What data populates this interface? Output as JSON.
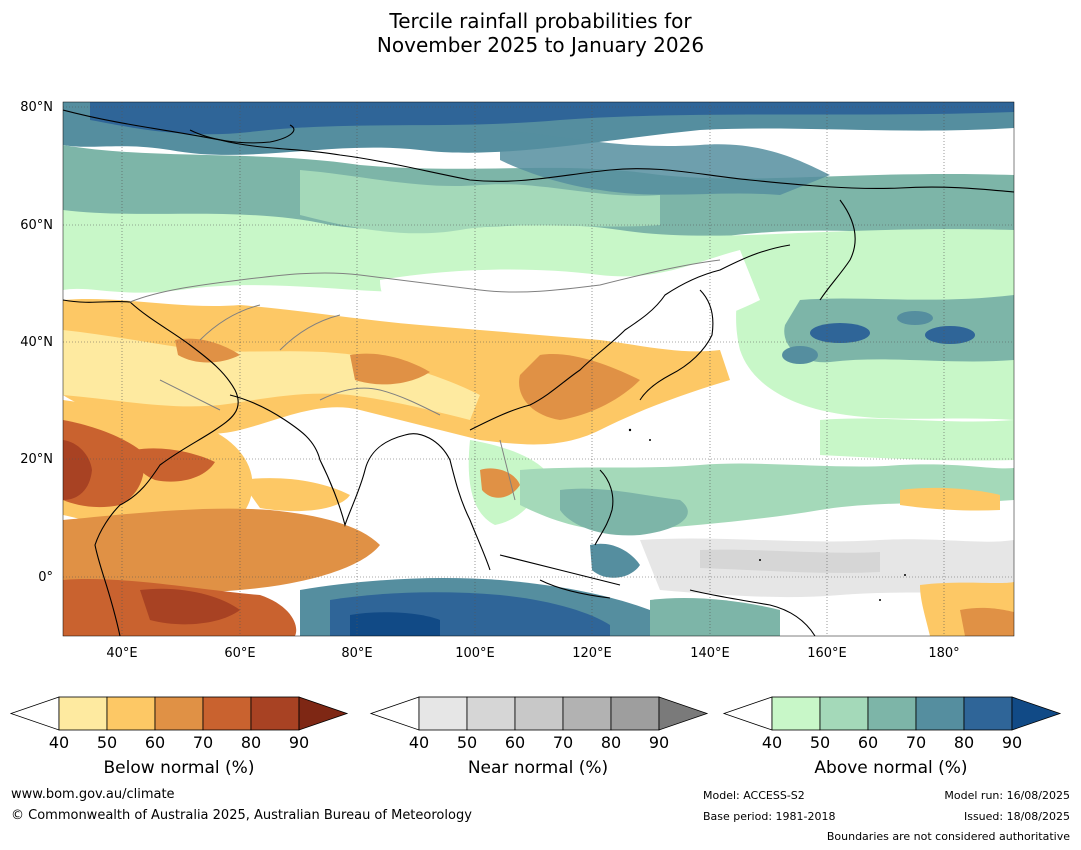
{
  "title": {
    "line1": "Tercile rainfall probabilities for",
    "line2": "November 2025 to January 2026"
  },
  "map": {
    "lat_labels": [
      "80°N",
      "60°N",
      "40°N",
      "20°N",
      "0°"
    ],
    "lon_labels": [
      "40°E",
      "60°E",
      "80°E",
      "100°E",
      "120°E",
      "140°E",
      "160°E",
      "180°"
    ]
  },
  "colorbars": [
    {
      "name": "below",
      "title": "Below normal (%)",
      "ticks": [
        "40",
        "50",
        "60",
        "70",
        "80",
        "90"
      ],
      "colors": [
        "#ffffff",
        "#feeaa0",
        "#fdc865",
        "#e09145",
        "#c9622f",
        "#a84223",
        "#7e2714"
      ]
    },
    {
      "name": "near",
      "title": "Near normal (%)",
      "ticks": [
        "40",
        "50",
        "60",
        "70",
        "80",
        "90"
      ],
      "colors": [
        "#ffffff",
        "#e6e6e6",
        "#d6d6d6",
        "#c8c8c8",
        "#b2b2b2",
        "#9e9e9e",
        "#7a7a7a"
      ]
    },
    {
      "name": "above",
      "title": "Above normal (%)",
      "ticks": [
        "40",
        "50",
        "60",
        "70",
        "80",
        "90"
      ],
      "colors": [
        "#ffffff",
        "#c8f7c8",
        "#a4d9b9",
        "#7db5a8",
        "#558e9f",
        "#2f6598",
        "#114a86"
      ]
    }
  ],
  "footer": {
    "url": "www.bom.gov.au/climate",
    "copyright": "© Commonwealth of Australia 2025, Australian Bureau of Meteorology",
    "model": "Model: ACCESS-S2",
    "base_period": "Base period: 1981-2018",
    "model_run": "Model run: 16/08/2025",
    "issued": "Issued: 18/08/2025",
    "boundaries": "Boundaries are not considered authoritative"
  }
}
